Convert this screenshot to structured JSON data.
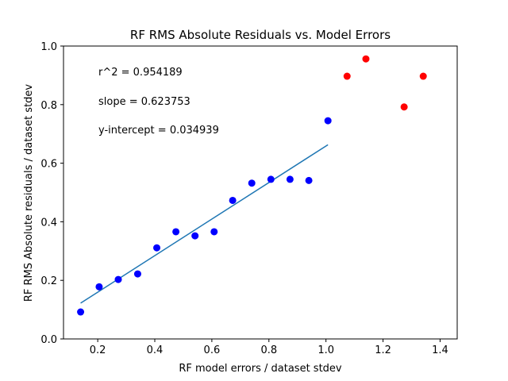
{
  "chart_data": {
    "type": "scatter",
    "title": "RF RMS Absolute Residuals vs. Model Errors",
    "xlabel": "RF model errors / dataset stdev",
    "ylabel": "RF RMS Absolute residuals / dataset stdev",
    "xlim": [
      0.08,
      1.46
    ],
    "ylim": [
      0.0,
      1.0
    ],
    "xticks": [
      0.2,
      0.4,
      0.6,
      0.8,
      1.0,
      1.2,
      1.4
    ],
    "xtick_labels": [
      "0.2",
      "0.4",
      "0.6",
      "0.8",
      "1.0",
      "1.2",
      "1.4"
    ],
    "yticks": [
      0.0,
      0.2,
      0.4,
      0.6,
      0.8,
      1.0
    ],
    "ytick_labels": [
      "0.0",
      "0.2",
      "0.4",
      "0.6",
      "0.8",
      "1.0"
    ],
    "grid": false,
    "annotations": [
      "r^2 = 0.954189",
      "slope = 0.623753",
      "y-intercept = 0.034939"
    ],
    "series": [
      {
        "color": "#0000ff",
        "x": [
          0.14,
          0.205,
          0.272,
          0.34,
          0.407,
          0.474,
          0.541,
          0.608,
          0.673,
          0.74,
          0.807,
          0.874,
          0.94,
          1.007
        ],
        "y": [
          0.092,
          0.178,
          0.203,
          0.222,
          0.311,
          0.366,
          0.352,
          0.366,
          0.473,
          0.532,
          0.545,
          0.545,
          0.541,
          0.745
        ]
      },
      {
        "color": "#ff0000",
        "x": [
          1.074,
          1.14,
          1.274,
          1.341
        ],
        "y": [
          0.897,
          0.956,
          0.792,
          0.897
        ]
      }
    ],
    "fit_line": {
      "color": "#1f77b4",
      "x": [
        0.14,
        1.007
      ],
      "slope": 0.623753,
      "intercept": 0.034939
    }
  }
}
